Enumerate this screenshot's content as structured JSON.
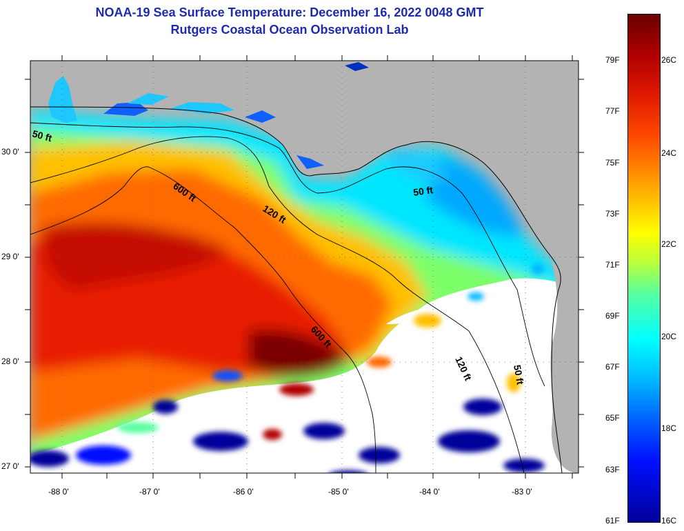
{
  "title": {
    "line1": "NOAA-19 Sea Surface Temperature:  December 16, 2022 0048 GMT",
    "line2": "Rutgers Coastal Ocean Observation Lab"
  },
  "map": {
    "lat_labels": [
      "30 0'",
      "29 0'",
      "28 0'",
      "27 0'"
    ],
    "lon_labels": [
      "-88 0'",
      "-87 0'",
      "-86 0'",
      "-85 0'",
      "-84 0'",
      "-83 0'"
    ],
    "contour_labels": [
      "50 ft",
      "50 ft",
      "120 ft",
      "600 ft",
      "600 ft",
      "120 ft",
      "50 ft"
    ]
  },
  "colorbar": {
    "fahrenheit_labels": [
      "79F",
      "77F",
      "75F",
      "73F",
      "71F",
      "69F",
      "67F",
      "65F",
      "63F",
      "61F"
    ],
    "celsius_labels": [
      "26C",
      "24C",
      "22C",
      "20C",
      "18C",
      "16C"
    ],
    "gradient_colors": [
      "#6a0000",
      "#e01a00",
      "#ff8a00",
      "#ffff00",
      "#00ffff",
      "#0060ff",
      "#00009a"
    ]
  }
}
